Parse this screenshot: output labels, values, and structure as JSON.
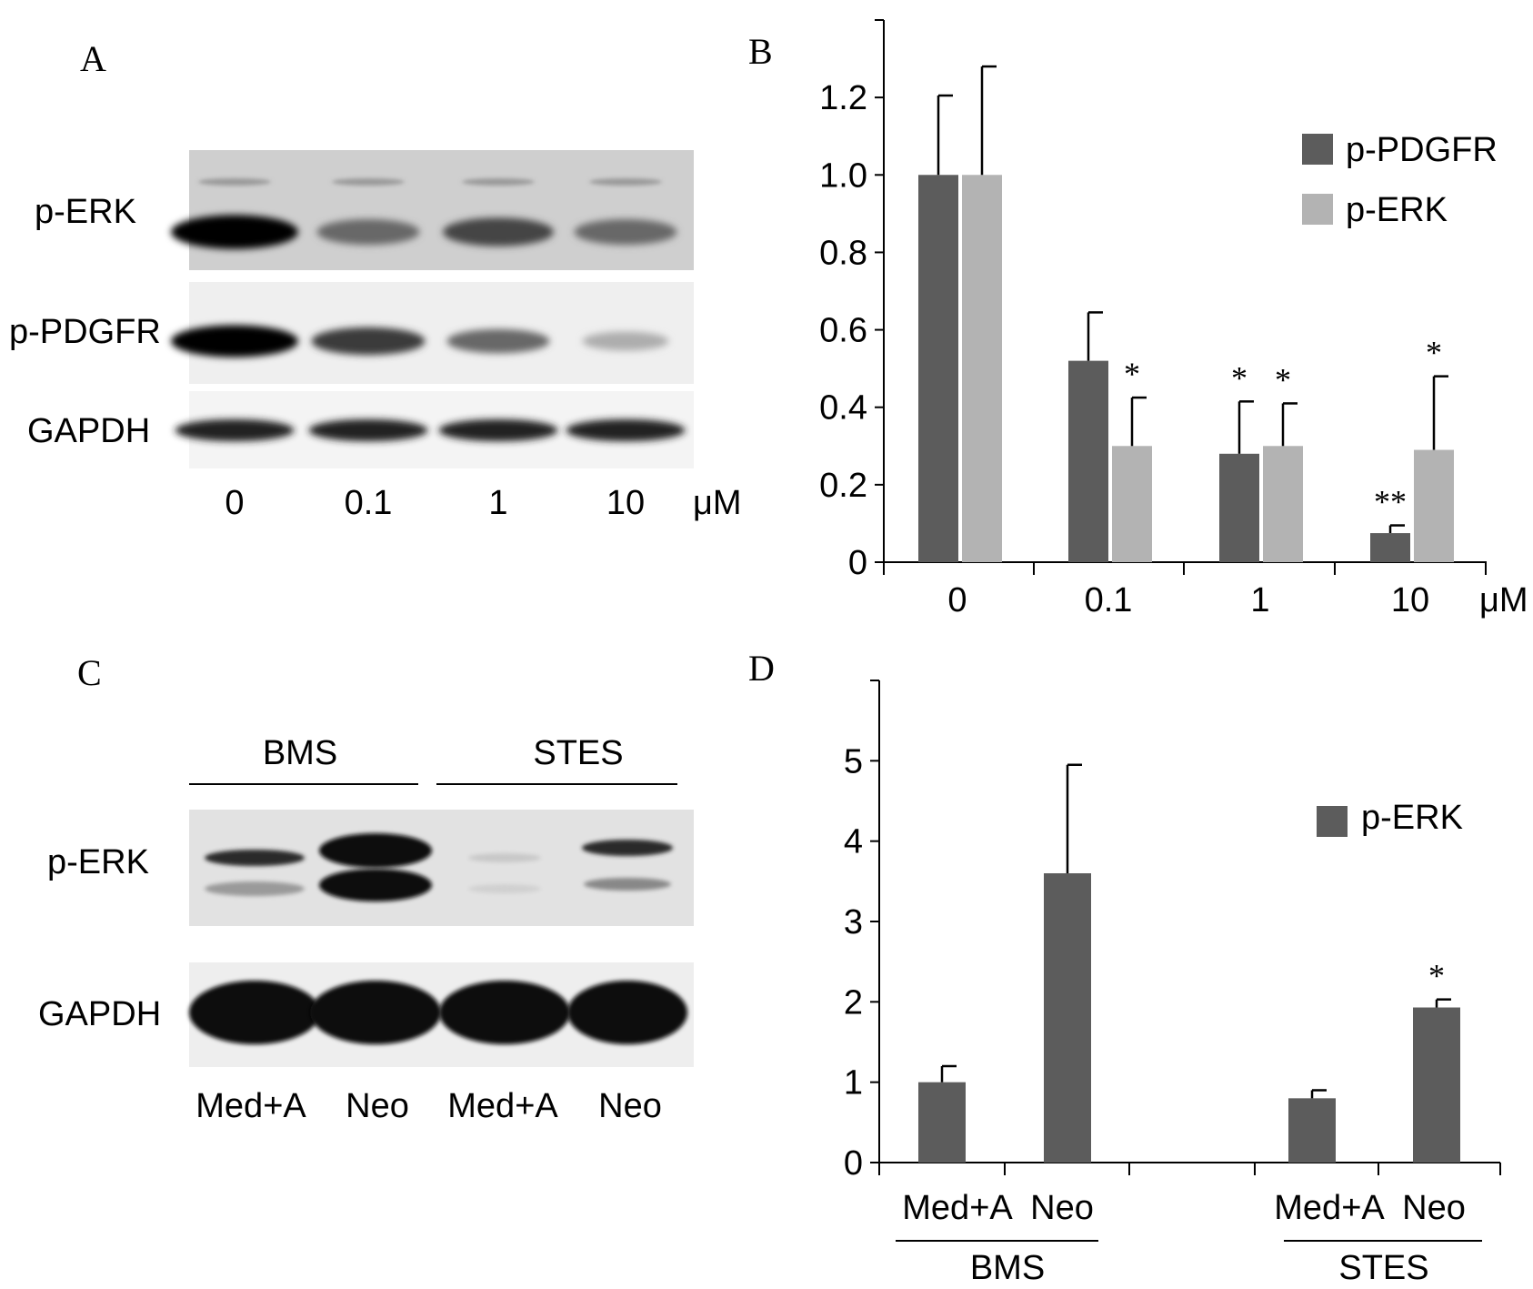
{
  "panel_letters": [
    "A",
    "B",
    "C",
    "D"
  ],
  "blot_A": {
    "rows": [
      "p-ERK",
      "p-PDGFR",
      "GAPDH"
    ],
    "lanes": [
      "0",
      "0.1",
      "1",
      "10"
    ],
    "unit": "μM",
    "band_intensity": {
      "p-ERK": [
        1.0,
        0.55,
        0.7,
        0.55
      ],
      "p-PDGFR": [
        1.0,
        0.75,
        0.55,
        0.25
      ],
      "GAPDH": [
        0.85,
        0.85,
        0.85,
        0.85
      ]
    }
  },
  "blot_C": {
    "groups": [
      "BMS",
      "STES"
    ],
    "rows": [
      "p-ERK",
      "GAPDH"
    ],
    "lanes": [
      "Med+A",
      "Neo",
      "Med+A",
      "Neo"
    ]
  },
  "chart_data": [
    {
      "type": "bar",
      "categories": [
        "0",
        "0.1",
        "1",
        "10"
      ],
      "x_unit": "μM",
      "ylim": [
        0,
        1.4
      ],
      "yticks": [
        "0",
        "0.2",
        "0.4",
        "0.6",
        "0.8",
        "1.0",
        "1.2"
      ],
      "legend_position": "top-right",
      "series": [
        {
          "name": "p-PDGFR",
          "color": "#5c5c5c",
          "values": [
            1.0,
            0.52,
            0.28,
            0.075
          ],
          "errors": [
            0.205,
            0.125,
            0.135,
            0.02
          ],
          "significance": [
            "",
            "",
            "*",
            "**"
          ]
        },
        {
          "name": "p-ERK",
          "color": "#b3b3b3",
          "values": [
            1.0,
            0.3,
            0.3,
            0.29
          ],
          "errors": [
            0.28,
            0.125,
            0.11,
            0.19
          ],
          "significance": [
            "",
            "*",
            "*",
            "*"
          ]
        }
      ]
    },
    {
      "type": "bar",
      "categories": [
        "Med+A",
        "Neo",
        "Med+A",
        "Neo"
      ],
      "groups": [
        "BMS",
        "STES"
      ],
      "ylim": [
        0,
        6
      ],
      "yticks": [
        "0",
        "1",
        "2",
        "3",
        "4",
        "5"
      ],
      "legend_position": "top-right",
      "series": [
        {
          "name": "p-ERK",
          "color": "#5c5c5c",
          "values": [
            1.0,
            3.6,
            0.8,
            1.93
          ],
          "errors": [
            0.2,
            1.35,
            0.1,
            0.1
          ],
          "significance": [
            "",
            "",
            "",
            "*"
          ]
        }
      ]
    }
  ]
}
